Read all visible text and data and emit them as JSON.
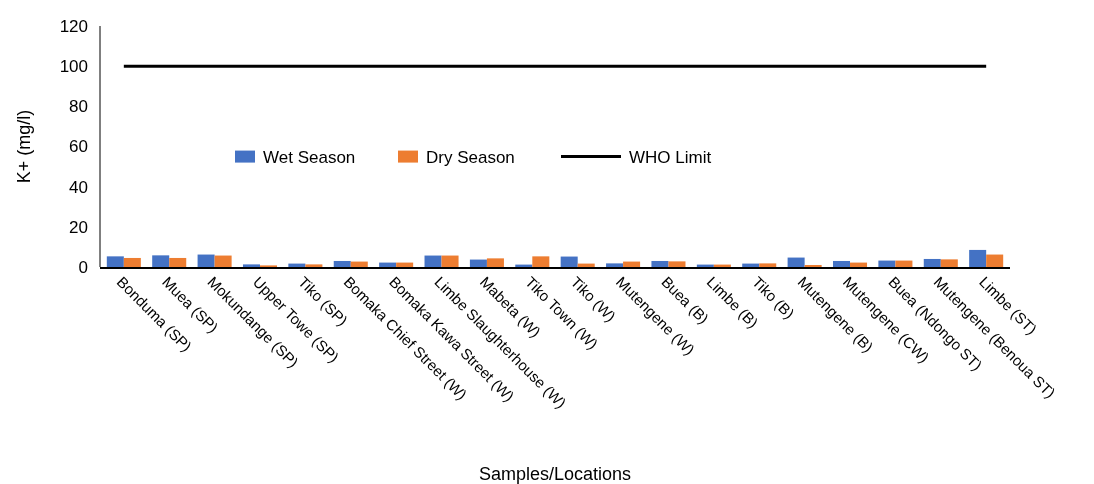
{
  "chart_data": {
    "type": "bar",
    "xlabel": "Samples/Locations",
    "ylabel": "K+ (mg/l)",
    "categories": [
      "Bonduma (SP)",
      "Muea (SP)",
      "Mokundange (SP)",
      "Upper Towe (SP)",
      "Tiko (SP)",
      "Bomaka Chief Street (W)",
      "Bomaka Kawa Street (W)",
      "Limbe Slaughterhouse (W)",
      "Mabeta (W)",
      "Tiko Town (W)",
      "Tiko (W)",
      "Mutengene (W)",
      "Buea (B)",
      "Limbe (B)",
      "Tiko (B)",
      "Mutengene (B)",
      "Mutengene (CW)",
      "Buea (Ndongo ST)",
      "Mutengene (Benoua ST)",
      "Limbe (ST)"
    ],
    "series": [
      {
        "name": "Wet Season",
        "color": "#4472c4",
        "values": [
          5.3,
          5.8,
          6.2,
          1.3,
          1.7,
          3,
          2.2,
          5.7,
          3.7,
          1.2,
          5.2,
          1.8,
          3,
          1.2,
          1.7,
          4.7,
          3,
          3.2,
          4,
          8.5
        ]
      },
      {
        "name": "Dry Season",
        "color": "#ed7d31",
        "values": [
          4.5,
          4.5,
          5.7,
          0.8,
          1.3,
          2.7,
          2.2,
          5.7,
          4.3,
          5.3,
          1.7,
          2.7,
          2.8,
          1.2,
          1.8,
          1,
          2.2,
          3.2,
          3.8,
          6.2
        ]
      },
      {
        "name": "WHO Limit",
        "type": "line",
        "color": "#000000",
        "values": [
          100,
          100,
          100,
          100,
          100,
          100,
          100,
          100,
          100,
          100,
          100,
          100,
          100,
          100,
          100,
          100,
          100,
          100,
          100,
          100
        ]
      }
    ],
    "ylim": [
      0,
      120
    ],
    "yticks": [
      0,
      20,
      40,
      60,
      80,
      100,
      120
    ],
    "grid": false,
    "legend": "center",
    "marker": "none",
    "line_style": "solid"
  }
}
